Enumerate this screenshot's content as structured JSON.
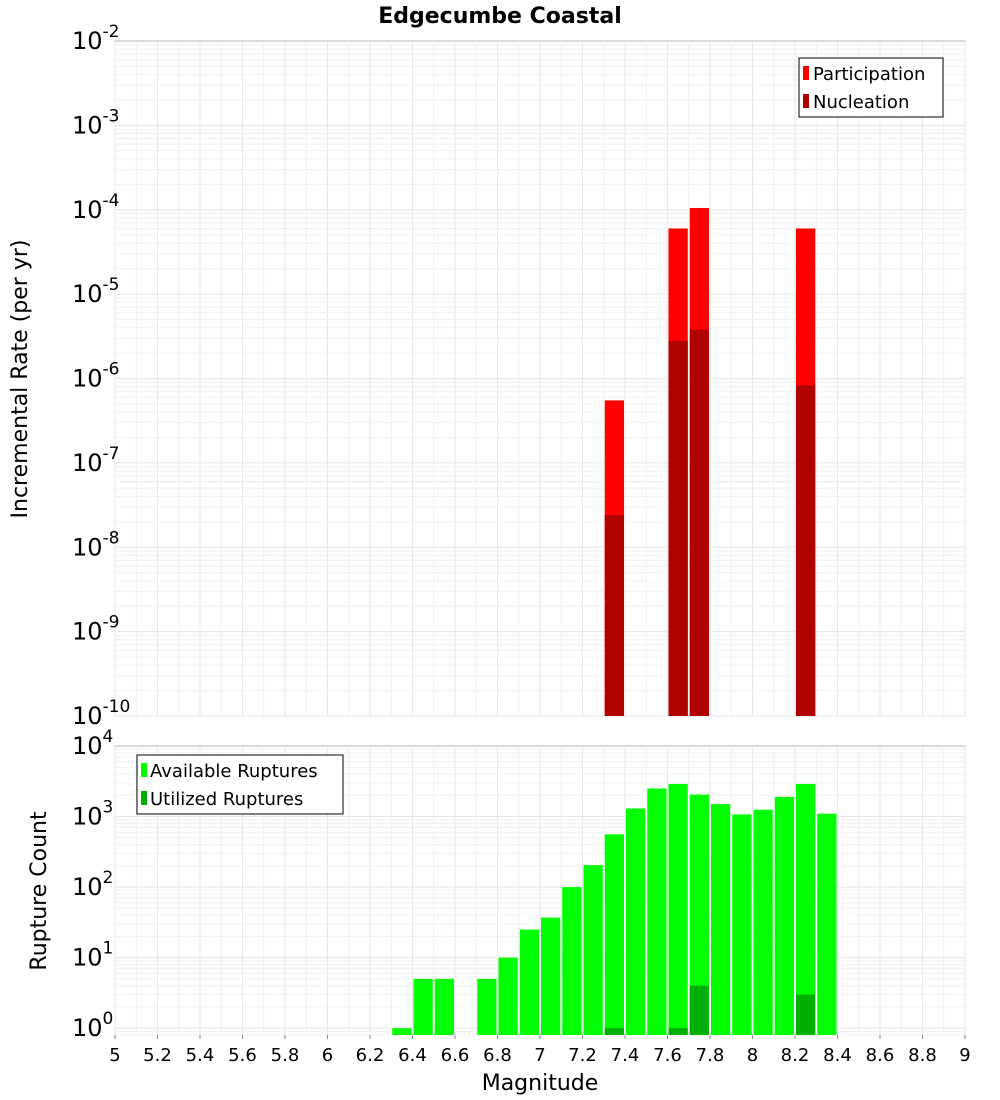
{
  "chart_data": [
    {
      "type": "bar",
      "title": "Edgecumbe Coastal",
      "xlabel": "",
      "ylabel": "Incremental Rate (per yr)",
      "yscale": "log",
      "ylim": [
        1e-10,
        0.01
      ],
      "xlim": [
        5,
        9
      ],
      "y_exponents": [
        -10,
        -9,
        -8,
        -7,
        -6,
        -5,
        -4,
        -3,
        -2
      ],
      "bar_width": 0.1,
      "legend_position": "top-right",
      "grid": true,
      "series": [
        {
          "name": "Participation",
          "color": "#ff0000",
          "points": [
            {
              "x": 7.35,
              "y": 5.5e-07
            },
            {
              "x": 7.65,
              "y": 6e-05
            },
            {
              "x": 7.75,
              "y": 0.000105
            },
            {
              "x": 8.25,
              "y": 6e-05
            }
          ]
        },
        {
          "name": "Nucleation",
          "color": "#b00000",
          "points": [
            {
              "x": 7.35,
              "y": 2.4e-08
            },
            {
              "x": 7.65,
              "y": 2.8e-06
            },
            {
              "x": 7.75,
              "y": 3.8e-06
            },
            {
              "x": 8.25,
              "y": 8.3e-07
            }
          ]
        }
      ]
    },
    {
      "type": "bar",
      "title": "",
      "xlabel": "Magnitude",
      "ylabel": "Rupture Count",
      "yscale": "log",
      "ylim": [
        0.8,
        10000
      ],
      "xlim": [
        5,
        9
      ],
      "y_exponents": [
        0,
        1,
        2,
        3,
        4
      ],
      "x_ticks": [
        "5",
        "5.2",
        "5.4",
        "5.6",
        "5.8",
        "6",
        "6.2",
        "6.4",
        "6.6",
        "6.8",
        "7",
        "7.2",
        "7.4",
        "7.6",
        "7.8",
        "8",
        "8.2",
        "8.4",
        "8.6",
        "8.8",
        "9"
      ],
      "bar_width": 0.1,
      "legend_position": "top-left",
      "grid": true,
      "series": [
        {
          "name": "Available Ruptures",
          "color": "#00ff00",
          "points": [
            {
              "x": 6.35,
              "y": 1
            },
            {
              "x": 6.45,
              "y": 5
            },
            {
              "x": 6.55,
              "y": 5
            },
            {
              "x": 6.75,
              "y": 5
            },
            {
              "x": 6.85,
              "y": 10
            },
            {
              "x": 6.95,
              "y": 25
            },
            {
              "x": 7.05,
              "y": 37
            },
            {
              "x": 7.15,
              "y": 100
            },
            {
              "x": 7.25,
              "y": 205
            },
            {
              "x": 7.35,
              "y": 560
            },
            {
              "x": 7.45,
              "y": 1300
            },
            {
              "x": 7.55,
              "y": 2500
            },
            {
              "x": 7.65,
              "y": 2900
            },
            {
              "x": 7.75,
              "y": 2050
            },
            {
              "x": 7.85,
              "y": 1500
            },
            {
              "x": 7.95,
              "y": 1070
            },
            {
              "x": 8.05,
              "y": 1250
            },
            {
              "x": 8.15,
              "y": 1900
            },
            {
              "x": 8.25,
              "y": 2900
            },
            {
              "x": 8.35,
              "y": 1100
            }
          ]
        },
        {
          "name": "Utilized Ruptures",
          "color": "#00b000",
          "points": [
            {
              "x": 7.35,
              "y": 1
            },
            {
              "x": 7.65,
              "y": 1
            },
            {
              "x": 7.75,
              "y": 4
            },
            {
              "x": 8.25,
              "y": 3
            }
          ]
        }
      ]
    }
  ]
}
